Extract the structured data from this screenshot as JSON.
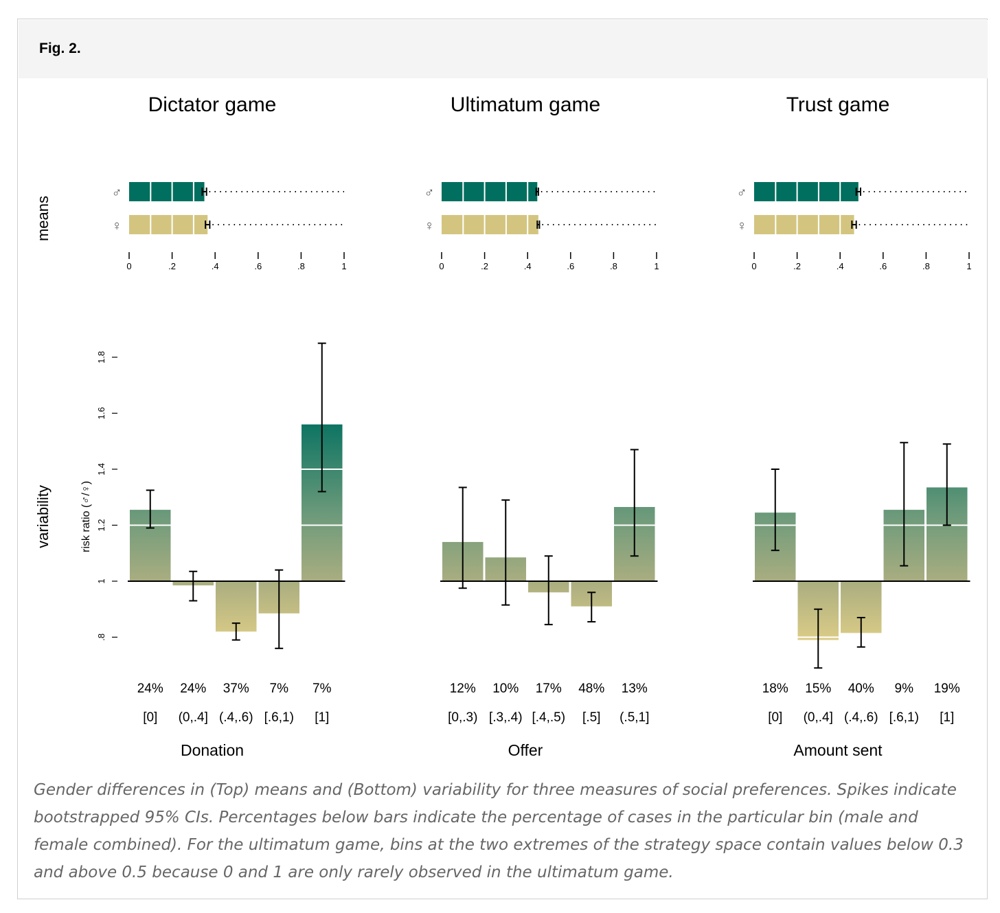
{
  "figure_label": "Fig. 2.",
  "caption": "Gender differences in (Top) means and (Bottom) variability for three measures of social preferences. Spikes indicate bootstrapped 95% CIs. Percentages below bars indicate the percentage of cases in the particular bin (male and female combined). For the ultimatum game, bins at the two extremes of the strategy space contain values below 0.3 and above 0.5 because 0 and 1 are only rarely observed in the ultimatum game.",
  "colors": {
    "male": "#006f5f",
    "female": "#d3c57f"
  },
  "chart_data": {
    "row_labels": {
      "top": "means",
      "bottom": "variability"
    },
    "symbols": {
      "male": "♂",
      "female": "♀"
    },
    "means_axis": {
      "ticks": [
        "0",
        ".2",
        ".4",
        ".6",
        ".8",
        "1"
      ],
      "range": [
        0,
        1
      ]
    },
    "variability_axis": {
      "label": "risk ratio (♂/♀)",
      "ticks": [
        ".8",
        "1",
        "1.2",
        "1.4",
        "1.6",
        "1.8"
      ],
      "tick_values": [
        0.8,
        1.0,
        1.2,
        1.4,
        1.6,
        1.8
      ],
      "baseline": 1.0
    },
    "panels": [
      {
        "title": "Dictator game",
        "xlabel": "Donation",
        "means": {
          "male": 0.35,
          "male_ci": [
            0.34,
            0.36
          ],
          "female": 0.365,
          "female_ci": [
            0.355,
            0.375
          ]
        },
        "bins": [
          "[0]",
          "(0,.4]",
          "(.4,.6)",
          "[.6,1)",
          "[1]"
        ],
        "percentages": [
          "24%",
          "24%",
          "37%",
          "7%",
          "7%"
        ],
        "ratios": [
          1.255,
          0.985,
          0.82,
          0.885,
          1.56
        ],
        "ci": [
          [
            1.19,
            1.325
          ],
          [
            0.93,
            1.035
          ],
          [
            0.79,
            0.85
          ],
          [
            0.76,
            1.04
          ],
          [
            1.32,
            1.85
          ]
        ]
      },
      {
        "title": "Ultimatum game",
        "xlabel": "Offer",
        "means": {
          "male": 0.445,
          "male_ci": [
            0.44,
            0.45
          ],
          "female": 0.45,
          "female_ci": [
            0.445,
            0.455
          ]
        },
        "bins": [
          "[0,.3)",
          "[.3,.4)",
          "[.4,.5)",
          "[.5]",
          "(.5,1]"
        ],
        "percentages": [
          "12%",
          "10%",
          "17%",
          "48%",
          "13%"
        ],
        "ratios": [
          1.14,
          1.085,
          0.96,
          0.91,
          1.265
        ],
        "ci": [
          [
            0.975,
            1.335
          ],
          [
            0.915,
            1.29
          ],
          [
            0.845,
            1.09
          ],
          [
            0.855,
            0.96
          ],
          [
            1.09,
            1.47
          ]
        ]
      },
      {
        "title": "Trust game",
        "xlabel": "Amount sent",
        "means": {
          "male": 0.485,
          "male_ci": [
            0.475,
            0.495
          ],
          "female": 0.465,
          "female_ci": [
            0.455,
            0.475
          ]
        },
        "bins": [
          "[0]",
          "(0,.4]",
          "(.4,.6)",
          "[.6,1)",
          "[1]"
        ],
        "percentages": [
          "18%",
          "15%",
          "40%",
          "9%",
          "19%"
        ],
        "ratios": [
          1.245,
          0.79,
          0.815,
          1.255,
          1.335
        ],
        "ci": [
          [
            1.11,
            1.4
          ],
          [
            0.69,
            0.9
          ],
          [
            0.765,
            0.87
          ],
          [
            1.055,
            1.495
          ],
          [
            1.2,
            1.49
          ]
        ]
      }
    ]
  }
}
